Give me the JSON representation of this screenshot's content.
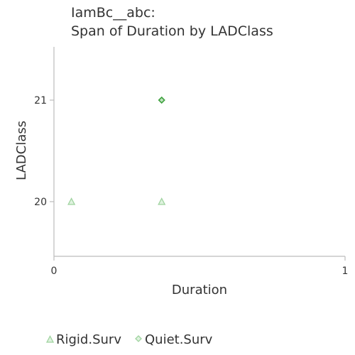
{
  "chart_data": {
    "type": "scatter",
    "title": "IamBc__abc:",
    "subtitle": "Span of Duration by LADClass",
    "xlabel": "Duration",
    "ylabel": "LADClass",
    "xlim": [
      0,
      1
    ],
    "ylim": [
      19.5,
      21.5
    ],
    "x_ticks": [
      "0",
      "1"
    ],
    "y_ticks": [
      "20",
      "21"
    ],
    "grid": false,
    "legend_position": "bottom-left",
    "series": [
      {
        "name": "Rigid.Surv",
        "marker": "triangle",
        "color": "#9fd39f",
        "points": [
          {
            "x": 0.06,
            "y": 20
          },
          {
            "x": 0.37,
            "y": 20
          }
        ]
      },
      {
        "name": "Quiet.Surv",
        "marker": "diamond",
        "color": "#3fa23f",
        "points": [
          {
            "x": 0.37,
            "y": 21
          }
        ]
      }
    ]
  }
}
